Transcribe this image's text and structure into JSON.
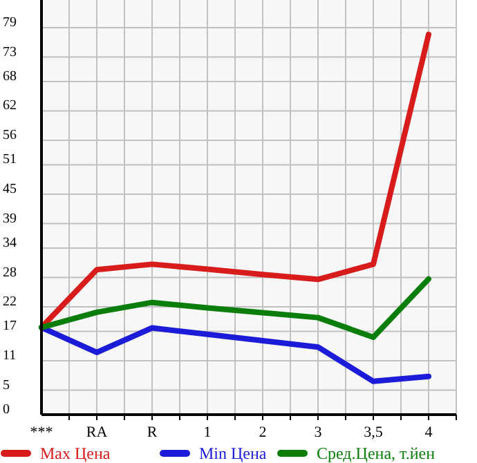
{
  "chart_data": {
    "type": "line",
    "categories": [
      "***",
      "RA",
      "R",
      "1",
      "2",
      "3",
      "3,5",
      "4"
    ],
    "series": [
      {
        "name": "Max Цена",
        "color": "#d81c1c",
        "values": [
          17.8,
          29.6,
          30.7,
          29.7,
          28.6,
          27.6,
          30.7,
          77.6
        ]
      },
      {
        "name": "Min Цена",
        "color": "#1c1cd8",
        "values": [
          17.8,
          12.7,
          17.7,
          16.4,
          15.1,
          13.8,
          6.8,
          7.8
        ]
      },
      {
        "name": "Сред.Цена, т.йен",
        "color": "#0a7d0a",
        "values": [
          17.8,
          20.9,
          22.9,
          21.8,
          20.8,
          19.8,
          15.8,
          27.7
        ]
      }
    ],
    "ylim": [
      0,
      84.64
    ],
    "yticks": [
      0,
      5,
      11,
      17,
      22,
      28,
      34,
      39,
      45,
      51,
      56,
      62,
      68,
      73,
      79
    ],
    "grid": true,
    "legend": "bottom",
    "marker": "none",
    "line_style": "solid"
  }
}
